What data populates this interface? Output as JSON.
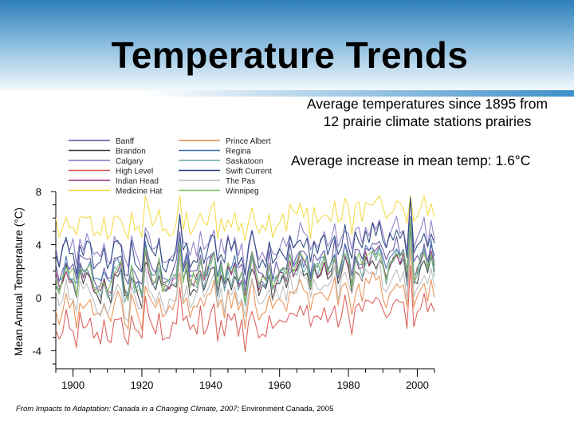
{
  "title": "Temperature Trends",
  "notes": {
    "line1": "Average temperatures since 1895 from",
    "line2": "12 prairie climate stations prairies",
    "increase": "Average increase in mean temp: 1.6°C"
  },
  "source": {
    "italic": "From Impacts to Adaptation: Canada in a Changing Climate, 2007;",
    "rest": " Environment Canada, 2005"
  },
  "chart_data": {
    "type": "line",
    "title": "",
    "xlabel": "",
    "ylabel": "Mean Annual Temperature (°C)",
    "xlim": [
      1895,
      2005
    ],
    "ylim": [
      -5,
      8
    ],
    "xticks": [
      "1900",
      "1920",
      "1940",
      "1960",
      "1980",
      "2000"
    ],
    "yticks": [
      "8",
      "4",
      "0",
      "-4"
    ],
    "legend_position": "top-left",
    "series": [
      {
        "name": "Banff",
        "color": "#5b4a9c",
        "base": 1.8,
        "trend": 1.6
      },
      {
        "name": "Brandon",
        "color": "#333333",
        "base": 0.6,
        "trend": 1.6
      },
      {
        "name": "Calgary",
        "color": "#8a74c4",
        "base": 3.4,
        "trend": 1.4
      },
      {
        "name": "High Level",
        "color": "#d9534f",
        "base": -2.6,
        "trend": 1.8
      },
      {
        "name": "Indian Head",
        "color": "#9b2b6b",
        "base": 1.0,
        "trend": 1.6
      },
      {
        "name": "Medicine Hat",
        "color": "#f2d73a",
        "base": 5.2,
        "trend": 1.5
      },
      {
        "name": "Prince Albert",
        "color": "#e8894a",
        "base": -1.0,
        "trend": 1.7
      },
      {
        "name": "Regina",
        "color": "#3f6fb0",
        "base": 1.4,
        "trend": 1.6
      },
      {
        "name": "Saskatoon",
        "color": "#6aa6a8",
        "base": 0.9,
        "trend": 1.6
      },
      {
        "name": "Swift Current",
        "color": "#1f3d7a",
        "base": 2.9,
        "trend": 1.5
      },
      {
        "name": "The Pas",
        "color": "#b8b8b8",
        "base": -0.3,
        "trend": 1.7
      },
      {
        "name": "Winnipeg",
        "color": "#7fbf5a",
        "base": 1.2,
        "trend": 1.6
      }
    ]
  }
}
